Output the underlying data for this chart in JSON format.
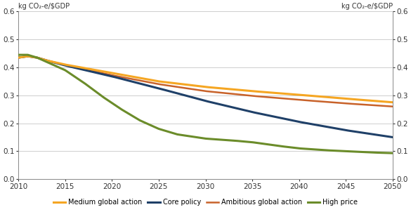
{
  "ylabel_left": "kg CO₂-e/$GDP",
  "ylabel_right": "kg CO₂-e/$GDP",
  "xlim": [
    2010,
    2050
  ],
  "ylim": [
    0.0,
    0.6
  ],
  "yticks": [
    0.0,
    0.1,
    0.2,
    0.3,
    0.4,
    0.5,
    0.6
  ],
  "xticks": [
    2010,
    2015,
    2020,
    2025,
    2030,
    2035,
    2040,
    2045,
    2050
  ],
  "series": {
    "Medium global action": {
      "color": "#F5A623",
      "linewidth": 2.2,
      "linestyle": "solid",
      "zorder": 4
    },
    "Core policy": {
      "color": "#1F4068",
      "linewidth": 2.2,
      "linestyle": "solid",
      "zorder": 3
    },
    "Ambitious global action": {
      "color": "#C8622A",
      "linewidth": 1.8,
      "linestyle": "solid",
      "zorder": 2
    },
    "High price": {
      "color": "#6B8C2A",
      "linewidth": 2.2,
      "linestyle": "solid",
      "zorder": 5
    }
  },
  "background_color": "#FFFFFF",
  "grid_color": "#BBBBBB"
}
